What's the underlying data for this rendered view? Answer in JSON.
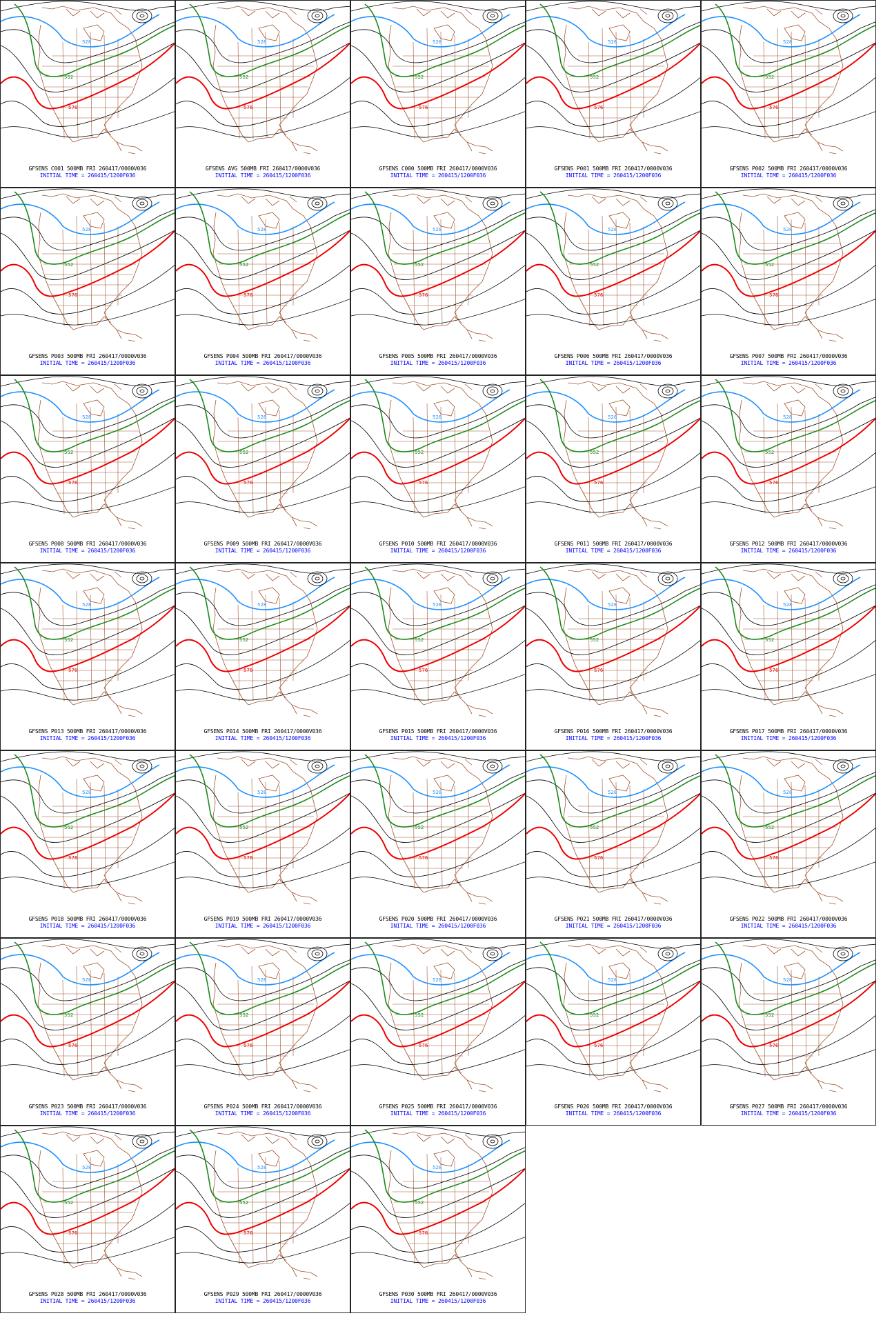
{
  "panels": [
    {
      "title": "GFSENS C001 500MB FRI 260417/0000V036",
      "init": "INITIAL TIME = 260415/1200F036"
    },
    {
      "title": "GFSENS AVG 500MB FRI 260417/0000V036",
      "init": "INITIAL TIME = 260415/1200F036"
    },
    {
      "title": "GFSENS C000 500MB FRI 260417/0000V036",
      "init": "INITIAL TIME = 260415/1200F036"
    },
    {
      "title": "GFSENS P001 500MB FRI 260417/0000V036",
      "init": "INITIAL TIME = 260415/1200F036"
    },
    {
      "title": "GFSENS P002 500MB FRI 260417/0000V036",
      "init": "INITIAL TIME = 260415/1200F036"
    },
    {
      "title": "GFSENS P003 500MB FRI 260417/0000V036",
      "init": "INITIAL TIME = 260415/1200F036"
    },
    {
      "title": "GFSENS P004 500MB FRI 260417/0000V036",
      "init": "INITIAL TIME = 260415/1200F036"
    },
    {
      "title": "GFSENS P005 500MB FRI 260417/0000V036",
      "init": "INITIAL TIME = 260415/1200F036"
    },
    {
      "title": "GFSENS P006 500MB FRI 260417/0000V036",
      "init": "INITIAL TIME = 260415/1200F036"
    },
    {
      "title": "GFSENS P007 500MB FRI 260417/0000V036",
      "init": "INITIAL TIME = 260415/1200F036"
    },
    {
      "title": "GFSENS P008 500MB FRI 260417/0000V036",
      "init": "INITIAL TIME = 260415/1200F036"
    },
    {
      "title": "GFSENS P009 500MB FRI 260417/0000V036",
      "init": "INITIAL TIME = 260415/1200F036"
    },
    {
      "title": "GFSENS P010 500MB FRI 260417/0000V036",
      "init": "INITIAL TIME = 260415/1200F036"
    },
    {
      "title": "GFSENS P011 500MB FRI 260417/0000V036",
      "init": "INITIAL TIME = 260415/1200F036"
    },
    {
      "title": "GFSENS P012 500MB FRI 260417/0000V036",
      "init": "INITIAL TIME = 260415/1200F036"
    },
    {
      "title": "GFSENS P013 500MB FRI 260417/0000V036",
      "init": "INITIAL TIME = 260415/1200F036"
    },
    {
      "title": "GFSENS P014 500MB FRI 260417/0000V036",
      "init": "INITIAL TIME = 260415/1200F036"
    },
    {
      "title": "GFSENS P015 500MB FRI 260417/0000V036",
      "init": "INITIAL TIME = 260415/1200F036"
    },
    {
      "title": "GFSENS P016 500MB FRI 260417/0000V036",
      "init": "INITIAL TIME = 260415/1200F036"
    },
    {
      "title": "GFSENS P017 500MB FRI 260417/0000V036",
      "init": "INITIAL TIME = 260415/1200F036"
    },
    {
      "title": "GFSENS P018 500MB FRI 260417/0000V036",
      "init": "INITIAL TIME = 260415/1200F036"
    },
    {
      "title": "GFSENS P019 500MB FRI 260417/0000V036",
      "init": "INITIAL TIME = 260415/1200F036"
    },
    {
      "title": "GFSENS P020 500MB FRI 260417/0000V036",
      "init": "INITIAL TIME = 260415/1200F036"
    },
    {
      "title": "GFSENS P021 500MB FRI 260417/0000V036",
      "init": "INITIAL TIME = 260415/1200F036"
    },
    {
      "title": "GFSENS P022 500MB FRI 260417/0000V036",
      "init": "INITIAL TIME = 260415/1200F036"
    },
    {
      "title": "GFSENS P023 500MB FRI 260417/0000V036",
      "init": "INITIAL TIME = 260415/1200F036"
    },
    {
      "title": "GFSENS P024 500MB FRI 260417/0000V036",
      "init": "INITIAL TIME = 260415/1200F036"
    },
    {
      "title": "GFSENS P025 500MB FRI 260417/0000V036",
      "init": "INITIAL TIME = 260415/1200F036"
    },
    {
      "title": "GFSENS P026 500MB FRI 260417/0000V036",
      "init": "INITIAL TIME = 260415/1200F036"
    },
    {
      "title": "GFSENS P027 500MB FRI 260417/0000V036",
      "init": "INITIAL TIME = 260415/1200F036"
    },
    {
      "title": "GFSENS P028 500MB FRI 260417/0000V036",
      "init": "INITIAL TIME = 260415/1200F036"
    },
    {
      "title": "GFSENS P029 500MB FRI 260417/0000V036",
      "init": "INITIAL TIME = 260415/1200F036"
    },
    {
      "title": "GFSENS P030 500MB FRI 260417/0000V036",
      "init": "INITIAL TIME = 260415/1200F036"
    }
  ],
  "contour_labels": {
    "low": "528",
    "mid": "552",
    "high": "576"
  },
  "colors": {
    "contour_528": "#1e90ff",
    "contour_552": "#1a8a1a",
    "contour_576": "#ee0000",
    "contour_other": "#000000",
    "geography": "#a0522d",
    "title_text": "#000000",
    "init_text": "#0000ff"
  }
}
